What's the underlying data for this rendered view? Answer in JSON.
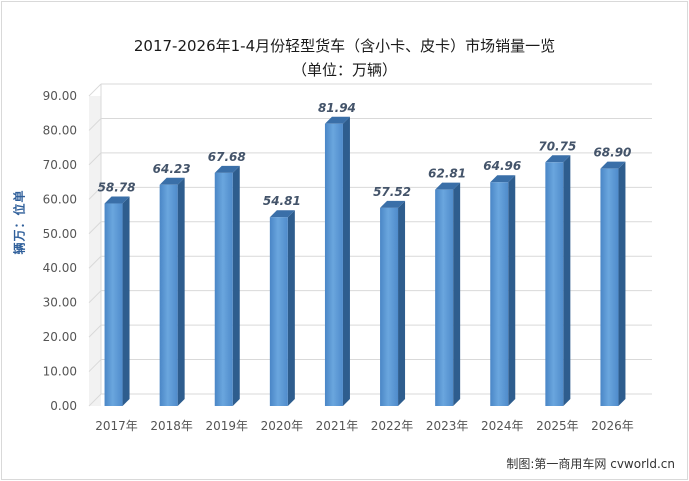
{
  "chart_data": {
    "type": "bar",
    "title": "2017-2026年1-4月份轻型货车（含小卡、皮卡）市场销量一览",
    "subtitle": "（单位：万辆）",
    "ylabel": "单位：万辆",
    "xlabel": "",
    "categories": [
      "2017年",
      "2018年",
      "2019年",
      "2020年",
      "2021年",
      "2022年",
      "2023年",
      "2024年",
      "2025年",
      "2026年"
    ],
    "values": [
      58.78,
      64.23,
      67.68,
      54.81,
      81.94,
      57.52,
      62.81,
      64.96,
      70.75,
      68.9
    ],
    "value_labels": [
      "58.78",
      "64.23",
      "67.68",
      "54.81",
      "81.94",
      "57.52",
      "62.81",
      "64.96",
      "70.75",
      "68.90"
    ],
    "ylim": [
      0,
      90
    ],
    "yticks": [
      "0.00",
      "10.00",
      "20.00",
      "30.00",
      "40.00",
      "50.00",
      "60.00",
      "70.00",
      "80.00",
      "90.00"
    ],
    "grid": true,
    "legend": "none",
    "bar_color": "#5b9bd5",
    "source": "制图:第一商用车网 cvworld.cn"
  }
}
